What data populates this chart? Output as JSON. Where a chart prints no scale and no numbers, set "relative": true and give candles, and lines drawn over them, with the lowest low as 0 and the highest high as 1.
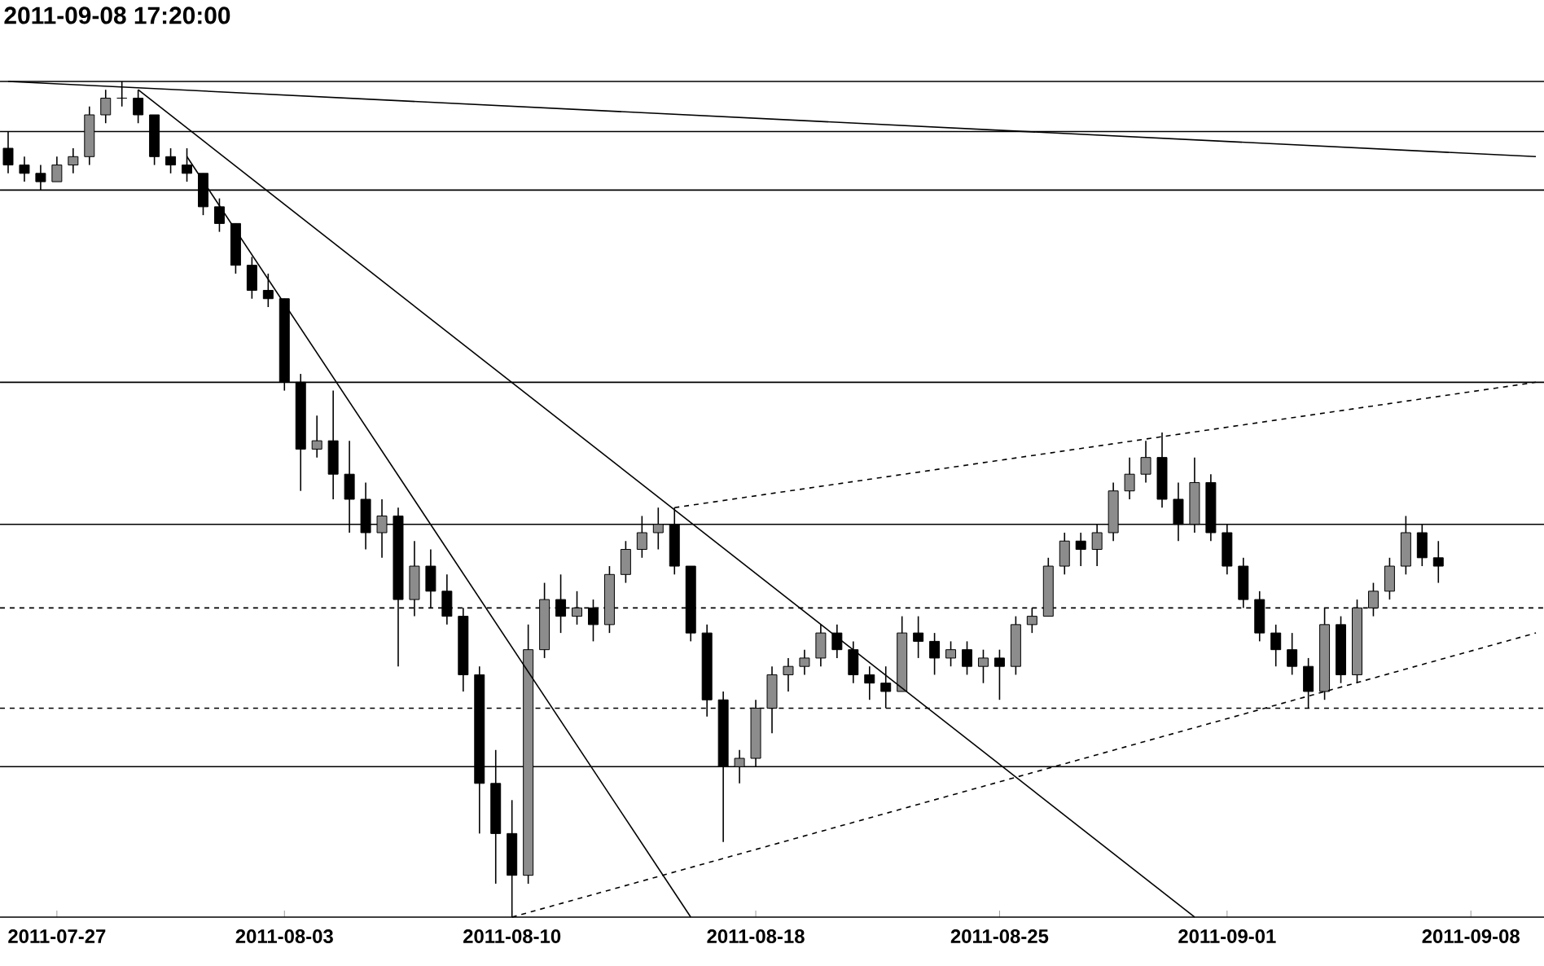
{
  "chart_data": {
    "type": "candlestick",
    "title": "2011-09-08 17:20:00",
    "relative": true,
    "color": "#000000",
    "categories": [
      null,
      null,
      null,
      "2011-07-27",
      null,
      null,
      null,
      null,
      null,
      null,
      null,
      null,
      null,
      null,
      null,
      null,
      null,
      "2011-08-03",
      null,
      null,
      null,
      null,
      null,
      null,
      null,
      null,
      null,
      null,
      null,
      null,
      null,
      "2011-08-10",
      null,
      null,
      null,
      null,
      null,
      null,
      null,
      null,
      null,
      null,
      null,
      null,
      null,
      null,
      "2011-08-18",
      null,
      null,
      null,
      null,
      null,
      null,
      null,
      null,
      null,
      null,
      null,
      null,
      null,
      null,
      "2011-08-25",
      null,
      null,
      null,
      null,
      null,
      null,
      null,
      null,
      null,
      null,
      null,
      null,
      null,
      "2011-09-01",
      null,
      null,
      null,
      null,
      null,
      null,
      null,
      null,
      null,
      null,
      null,
      null,
      null,
      null,
      "2011-09-08",
      null,
      null,
      null,
      null
    ],
    "ohlc": [
      [
        0.92,
        0.94,
        0.89,
        0.9
      ],
      [
        0.9,
        0.91,
        0.88,
        0.89
      ],
      [
        0.89,
        0.9,
        0.87,
        0.88
      ],
      [
        0.88,
        0.91,
        0.88,
        0.9
      ],
      [
        0.9,
        0.92,
        0.89,
        0.91
      ],
      [
        0.91,
        0.97,
        0.9,
        0.96
      ],
      [
        0.96,
        0.99,
        0.95,
        0.98
      ],
      [
        0.98,
        1.0,
        0.97,
        0.98
      ],
      [
        0.98,
        0.99,
        0.95,
        0.96
      ],
      [
        0.96,
        0.96,
        0.9,
        0.91
      ],
      [
        0.91,
        0.92,
        0.89,
        0.9
      ],
      [
        0.9,
        0.92,
        0.88,
        0.89
      ],
      [
        0.89,
        0.89,
        0.84,
        0.85
      ],
      [
        0.85,
        0.86,
        0.82,
        0.83
      ],
      [
        0.83,
        0.83,
        0.77,
        0.78
      ],
      [
        0.78,
        0.79,
        0.74,
        0.75
      ],
      [
        0.75,
        0.77,
        0.73,
        0.74
      ],
      [
        0.74,
        0.74,
        0.63,
        0.64
      ],
      [
        0.64,
        0.65,
        0.51,
        0.56
      ],
      [
        0.56,
        0.6,
        0.55,
        0.57
      ],
      [
        0.57,
        0.63,
        0.5,
        0.53
      ],
      [
        0.53,
        0.57,
        0.46,
        0.5
      ],
      [
        0.5,
        0.52,
        0.44,
        0.46
      ],
      [
        0.46,
        0.5,
        0.43,
        0.48
      ],
      [
        0.48,
        0.49,
        0.3,
        0.38
      ],
      [
        0.38,
        0.45,
        0.36,
        0.42
      ],
      [
        0.42,
        0.44,
        0.37,
        0.39
      ],
      [
        0.39,
        0.41,
        0.35,
        0.36
      ],
      [
        0.36,
        0.37,
        0.27,
        0.29
      ],
      [
        0.29,
        0.3,
        0.1,
        0.16
      ],
      [
        0.16,
        0.2,
        0.04,
        0.1
      ],
      [
        0.1,
        0.14,
        0.0,
        0.05
      ],
      [
        0.05,
        0.35,
        0.04,
        0.32
      ],
      [
        0.32,
        0.4,
        0.31,
        0.38
      ],
      [
        0.38,
        0.41,
        0.34,
        0.36
      ],
      [
        0.36,
        0.39,
        0.35,
        0.37
      ],
      [
        0.37,
        0.38,
        0.33,
        0.35
      ],
      [
        0.35,
        0.42,
        0.34,
        0.41
      ],
      [
        0.41,
        0.45,
        0.4,
        0.44
      ],
      [
        0.44,
        0.48,
        0.43,
        0.46
      ],
      [
        0.46,
        0.49,
        0.44,
        0.47
      ],
      [
        0.47,
        0.49,
        0.41,
        0.42
      ],
      [
        0.42,
        0.42,
        0.33,
        0.34
      ],
      [
        0.34,
        0.35,
        0.24,
        0.26
      ],
      [
        0.26,
        0.27,
        0.09,
        0.18
      ],
      [
        0.18,
        0.2,
        0.16,
        0.19
      ],
      [
        0.19,
        0.26,
        0.18,
        0.25
      ],
      [
        0.25,
        0.3,
        0.22,
        0.29
      ],
      [
        0.29,
        0.31,
        0.27,
        0.3
      ],
      [
        0.3,
        0.32,
        0.29,
        0.31
      ],
      [
        0.31,
        0.35,
        0.3,
        0.34
      ],
      [
        0.34,
        0.35,
        0.31,
        0.32
      ],
      [
        0.32,
        0.33,
        0.28,
        0.29
      ],
      [
        0.29,
        0.3,
        0.26,
        0.28
      ],
      [
        0.28,
        0.3,
        0.25,
        0.27
      ],
      [
        0.27,
        0.36,
        0.27,
        0.34
      ],
      [
        0.34,
        0.36,
        0.31,
        0.33
      ],
      [
        0.33,
        0.34,
        0.29,
        0.31
      ],
      [
        0.31,
        0.33,
        0.3,
        0.32
      ],
      [
        0.32,
        0.33,
        0.29,
        0.3
      ],
      [
        0.3,
        0.32,
        0.28,
        0.31
      ],
      [
        0.31,
        0.32,
        0.26,
        0.3
      ],
      [
        0.3,
        0.36,
        0.29,
        0.35
      ],
      [
        0.35,
        0.37,
        0.34,
        0.36
      ],
      [
        0.36,
        0.43,
        0.36,
        0.42
      ],
      [
        0.42,
        0.46,
        0.41,
        0.45
      ],
      [
        0.45,
        0.46,
        0.42,
        0.44
      ],
      [
        0.44,
        0.47,
        0.42,
        0.46
      ],
      [
        0.46,
        0.52,
        0.45,
        0.51
      ],
      [
        0.51,
        0.55,
        0.5,
        0.53
      ],
      [
        0.53,
        0.57,
        0.52,
        0.55
      ],
      [
        0.55,
        0.58,
        0.49,
        0.5
      ],
      [
        0.5,
        0.52,
        0.45,
        0.47
      ],
      [
        0.47,
        0.55,
        0.46,
        0.52
      ],
      [
        0.52,
        0.53,
        0.45,
        0.46
      ],
      [
        0.46,
        0.47,
        0.41,
        0.42
      ],
      [
        0.42,
        0.43,
        0.37,
        0.38
      ],
      [
        0.38,
        0.39,
        0.33,
        0.34
      ],
      [
        0.34,
        0.35,
        0.3,
        0.32
      ],
      [
        0.32,
        0.34,
        0.29,
        0.3
      ],
      [
        0.3,
        0.31,
        0.25,
        0.27
      ],
      [
        0.27,
        0.37,
        0.26,
        0.35
      ],
      [
        0.35,
        0.36,
        0.28,
        0.29
      ],
      [
        0.29,
        0.38,
        0.28,
        0.37
      ],
      [
        0.37,
        0.4,
        0.36,
        0.39
      ],
      [
        0.39,
        0.43,
        0.38,
        0.42
      ],
      [
        0.42,
        0.48,
        0.41,
        0.46
      ],
      [
        0.46,
        0.47,
        0.42,
        0.43
      ],
      [
        0.43,
        0.45,
        0.4,
        0.42
      ],
      null,
      null,
      null,
      null,
      null,
      null
    ],
    "series": [
      {
        "type": "line",
        "color": "#000000",
        "values": [
          1.0,
          null,
          null,
          null,
          null,
          null,
          null,
          null,
          null,
          null,
          null,
          null,
          null,
          null,
          null,
          null,
          null,
          null,
          null,
          null,
          null,
          null,
          null,
          null,
          null,
          null,
          null,
          null,
          null,
          null,
          null,
          null,
          null,
          null,
          null,
          null,
          null,
          null,
          null,
          null,
          null,
          null,
          null,
          null,
          null,
          null,
          null,
          null,
          null,
          null,
          null,
          null,
          null,
          null,
          null,
          null,
          null,
          null,
          null,
          null,
          null,
          null,
          null,
          null,
          null,
          null,
          null,
          null,
          null,
          null,
          null,
          null,
          null,
          null,
          null,
          null,
          null,
          null,
          null,
          null,
          null,
          null,
          null,
          null,
          null,
          null,
          null,
          null,
          null,
          null,
          null,
          null,
          null,
          null,
          0.91
        ]
      },
      {
        "type": "line",
        "color": "#000000",
        "values": [
          null,
          null,
          null,
          null,
          null,
          null,
          null,
          null,
          0.99,
          null,
          null,
          null,
          null,
          null,
          null,
          null,
          null,
          null,
          null,
          null,
          null,
          null,
          null,
          null,
          null,
          null,
          null,
          null,
          null,
          null,
          null,
          null,
          null,
          null,
          null,
          null,
          null,
          null,
          null,
          null,
          null,
          null,
          null,
          null,
          null,
          null,
          null,
          null,
          null,
          null,
          null,
          null,
          null,
          null,
          null,
          null,
          null,
          null,
          null,
          null,
          null,
          null,
          null,
          null,
          null,
          null,
          null,
          null,
          null,
          null,
          null,
          null,
          null,
          0.0,
          null,
          null,
          null,
          null,
          null,
          null,
          null,
          null,
          null,
          null,
          null,
          null,
          null,
          null,
          null,
          null,
          null,
          null,
          null,
          null,
          null
        ]
      },
      {
        "type": "line",
        "color": "#000000",
        "values": [
          null,
          null,
          null,
          null,
          null,
          null,
          null,
          null,
          null,
          null,
          null,
          0.91,
          null,
          null,
          null,
          null,
          null,
          null,
          null,
          null,
          null,
          null,
          null,
          null,
          null,
          null,
          null,
          null,
          null,
          null,
          null,
          null,
          null,
          null,
          null,
          null,
          null,
          null,
          null,
          null,
          null,
          null,
          0.0,
          null,
          null,
          null,
          null,
          null,
          null,
          null,
          null,
          null,
          null,
          null,
          null,
          null,
          null,
          null,
          null,
          null,
          null,
          null,
          null,
          null,
          null,
          null,
          null,
          null,
          null,
          null,
          null,
          null,
          null,
          null,
          null,
          null,
          null,
          null,
          null,
          null,
          null,
          null,
          null,
          null,
          null,
          null,
          null,
          null,
          null,
          null,
          null,
          null,
          null,
          null,
          null
        ]
      },
      {
        "type": "line",
        "color": "#000000",
        "line_style": "dashed",
        "values": [
          null,
          null,
          null,
          null,
          null,
          null,
          null,
          null,
          null,
          null,
          null,
          null,
          null,
          null,
          null,
          null,
          null,
          null,
          null,
          null,
          null,
          null,
          null,
          null,
          null,
          null,
          null,
          null,
          null,
          null,
          null,
          0.0,
          null,
          null,
          null,
          null,
          null,
          null,
          null,
          null,
          null,
          null,
          null,
          null,
          null,
          null,
          null,
          null,
          null,
          null,
          null,
          null,
          null,
          null,
          null,
          null,
          null,
          null,
          null,
          null,
          null,
          null,
          null,
          null,
          null,
          null,
          null,
          null,
          null,
          null,
          null,
          null,
          null,
          null,
          null,
          null,
          null,
          null,
          null,
          null,
          null,
          null,
          null,
          null,
          null,
          null,
          null,
          null,
          null,
          null,
          null,
          null,
          null,
          null,
          0.34
        ]
      },
      {
        "type": "line",
        "color": "#000000",
        "line_style": "dashed",
        "values": [
          null,
          null,
          null,
          null,
          null,
          null,
          null,
          null,
          null,
          null,
          null,
          null,
          null,
          null,
          null,
          null,
          null,
          null,
          null,
          null,
          null,
          null,
          null,
          null,
          null,
          null,
          null,
          null,
          null,
          null,
          null,
          null,
          null,
          null,
          null,
          null,
          null,
          null,
          null,
          null,
          null,
          0.49,
          null,
          null,
          null,
          null,
          null,
          null,
          null,
          null,
          null,
          null,
          null,
          null,
          null,
          null,
          null,
          null,
          null,
          null,
          null,
          null,
          null,
          null,
          null,
          null,
          null,
          null,
          null,
          null,
          null,
          null,
          null,
          null,
          null,
          null,
          null,
          null,
          null,
          null,
          null,
          null,
          null,
          null,
          null,
          null,
          null,
          null,
          null,
          null,
          null,
          null,
          null,
          null,
          0.64
        ]
      }
    ],
    "ref_lines": [
      {
        "axis": "y",
        "value": 1.0,
        "color": "#000000"
      },
      {
        "axis": "y",
        "value": 0.94,
        "color": "#000000"
      },
      {
        "axis": "y",
        "value": 0.87,
        "color": "#000000"
      },
      {
        "axis": "y",
        "value": 0.64,
        "color": "#000000"
      },
      {
        "axis": "y",
        "value": 0.47,
        "color": "#000000"
      },
      {
        "axis": "y",
        "value": 0.37,
        "color": "#000000",
        "line_style": "dashed"
      },
      {
        "axis": "y",
        "value": 0.25,
        "color": "#000000",
        "line_style": "dashed"
      },
      {
        "axis": "y",
        "value": 0.18,
        "color": "#000000"
      }
    ]
  }
}
